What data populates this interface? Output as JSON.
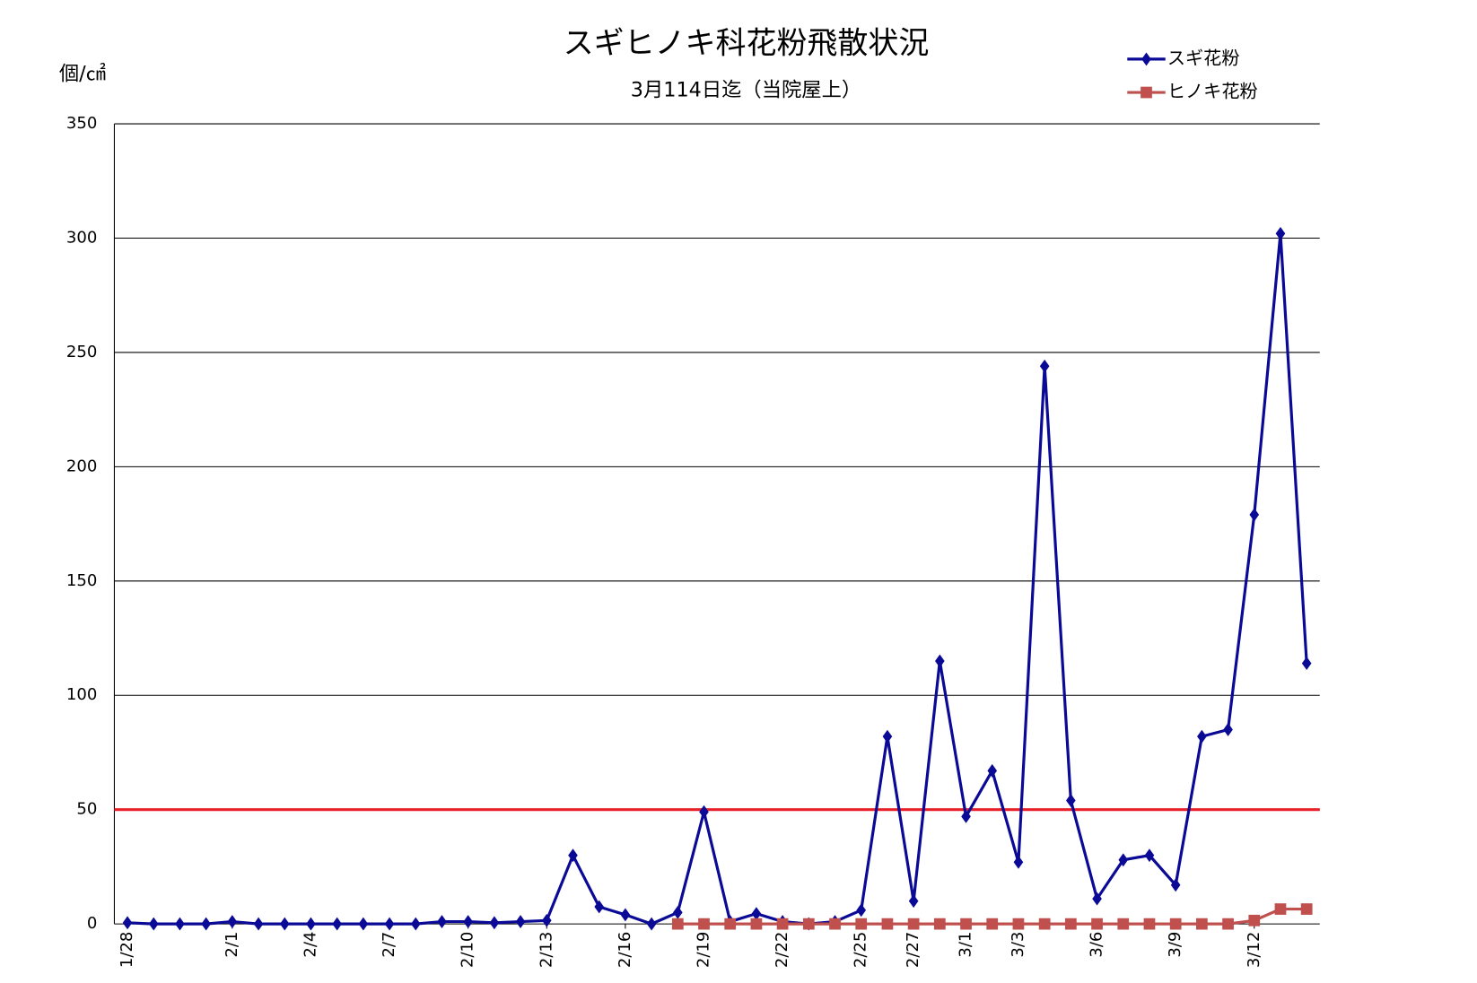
{
  "chart_data": {
    "type": "line",
    "title": "スギヒノキ科花粉飛散状況",
    "subtitle": "3月114日迄（当院屋上）",
    "y_label": "個/㎠",
    "categories": [
      "1/28",
      null,
      null,
      null,
      "2/1",
      null,
      null,
      "2/4",
      null,
      null,
      "2/7",
      null,
      null,
      "2/10",
      null,
      null,
      "2/13",
      null,
      null,
      "2/16",
      null,
      null,
      "2/19",
      null,
      null,
      "2/22",
      null,
      null,
      "2/25",
      null,
      "2/27",
      null,
      "3/1",
      null,
      "3/3",
      null,
      null,
      "3/6",
      null,
      null,
      "3/9",
      null,
      null,
      "3/12",
      null,
      null
    ],
    "series": [
      {
        "name": "スギ花粉",
        "color": "#0a0a96",
        "marker": "diamond",
        "values": [
          0.5,
          0,
          0,
          0,
          1,
          0,
          0,
          0,
          0,
          0,
          0,
          0,
          1,
          1,
          0.5,
          1,
          1.5,
          30,
          7.5,
          4,
          0,
          5,
          49,
          1,
          4.5,
          1,
          0,
          1,
          6,
          82,
          10,
          115,
          47,
          67,
          27,
          244,
          54,
          11,
          28,
          30,
          17,
          82,
          85,
          179,
          302,
          114
        ]
      },
      {
        "name": "ヒノキ花粉",
        "color": "#c0504d",
        "marker": "square",
        "values": [
          null,
          null,
          null,
          null,
          null,
          null,
          null,
          null,
          null,
          null,
          null,
          null,
          null,
          null,
          null,
          null,
          null,
          null,
          null,
          null,
          null,
          0,
          0,
          0,
          0,
          0,
          0,
          0,
          0,
          0,
          0,
          0,
          0,
          0,
          0,
          0,
          0,
          0,
          0,
          0,
          0,
          0,
          0,
          1.5,
          6.5,
          6.5
        ]
      }
    ],
    "threshold": {
      "value": 50,
      "color": "#e8202a"
    },
    "ylim": [
      0,
      350
    ],
    "yticks": [
      0,
      50,
      100,
      150,
      200,
      250,
      300,
      350
    ],
    "grid": true,
    "legend": "top-right"
  }
}
